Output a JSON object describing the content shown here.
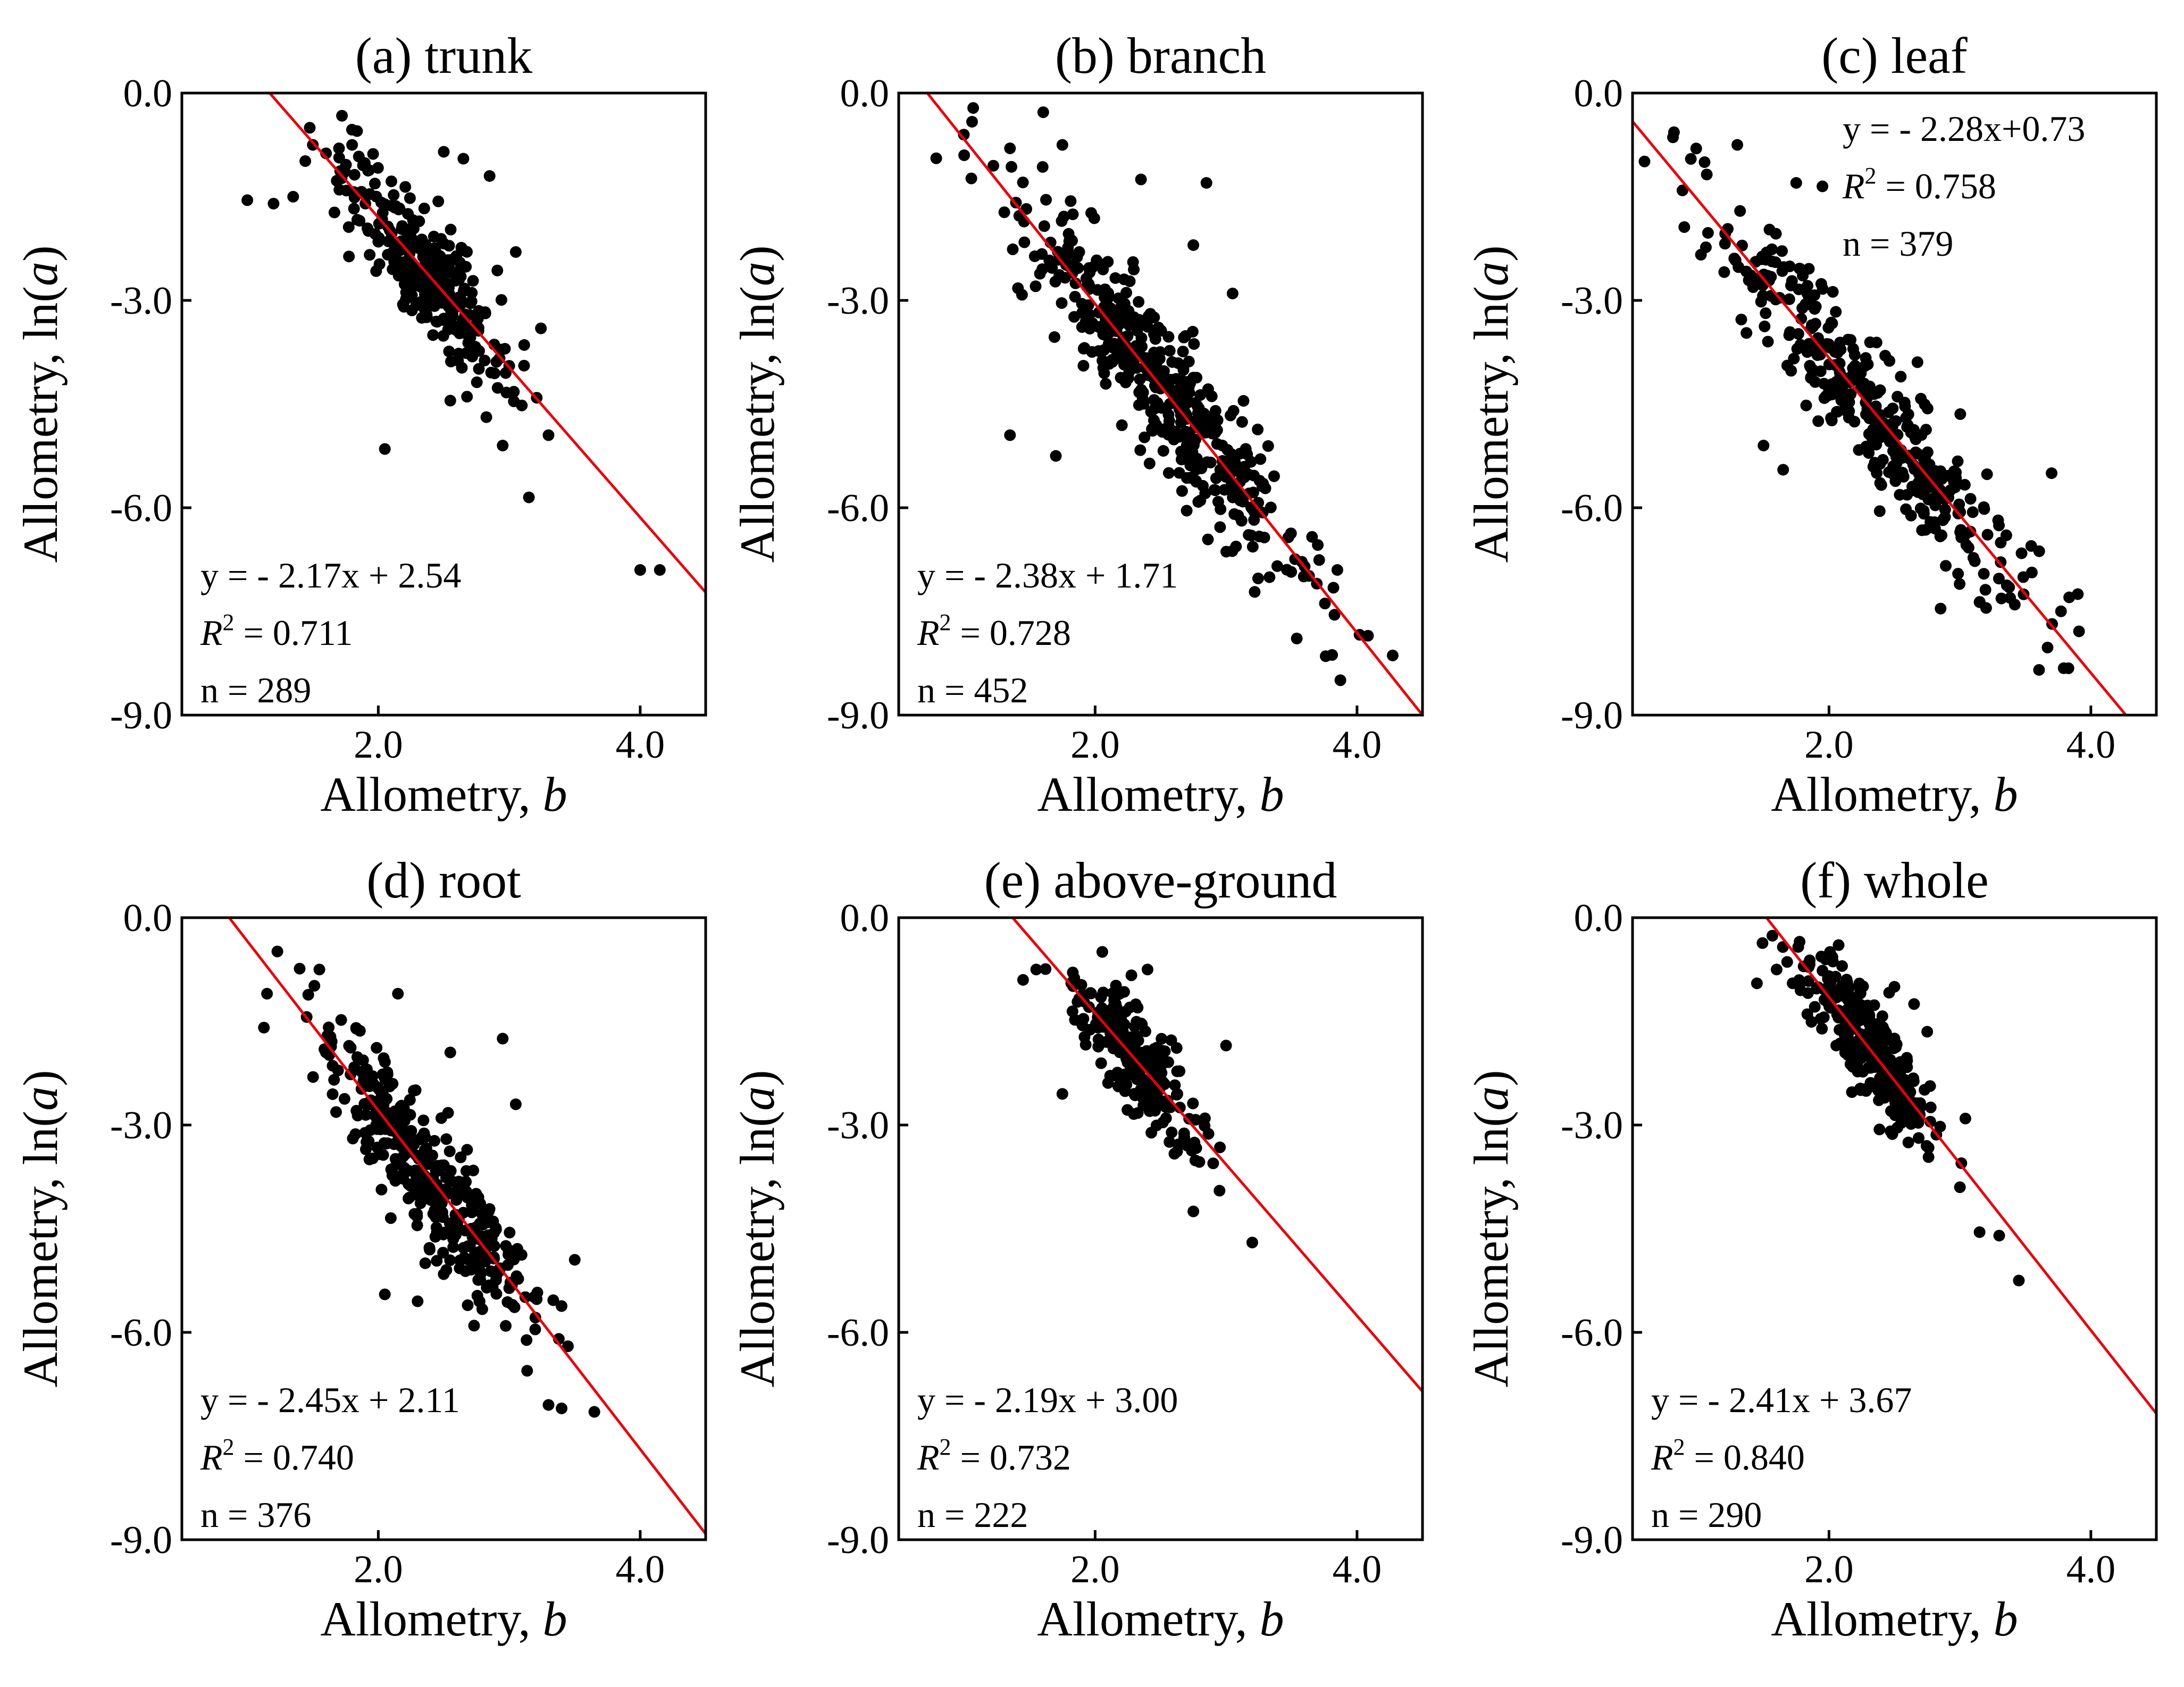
{
  "figure": {
    "x_label_text": "Allometry, ",
    "x_label_var": "b",
    "y_label_text": "Allometry, ln(",
    "y_label_var": "a",
    "y_label_close": ")",
    "line_color": "#e8000b",
    "point_color": "#000000"
  },
  "chart_data": [
    {
      "type": "scatter",
      "title": "(a) trunk",
      "xlim": [
        0.5,
        4.5
      ],
      "ylim": [
        -9.0,
        0.0
      ],
      "xticks": [
        "2.0",
        "4.0"
      ],
      "yticks": [
        "0.0",
        "-3.0",
        "-6.0",
        "-9.0"
      ],
      "xlabel": "Allometry, b",
      "ylabel": "Allometry, ln(a)",
      "fit": {
        "slope": -2.17,
        "intercept": 2.54
      },
      "annotation": {
        "equation": "y = - 2.17x + 2.54",
        "r2_label": "R",
        "r2_sup": "2",
        "r2_value": " = 0.711",
        "n": "n = 289"
      },
      "annotation_placement": "bottom-left",
      "cloud": {
        "n": 289,
        "x_center": 2.35,
        "x_sd": 0.33,
        "resid_sd": 0.45
      },
      "points": [
        [
          1.0,
          -1.55
        ],
        [
          1.2,
          -1.6
        ],
        [
          1.35,
          -1.5
        ],
        [
          1.5,
          -0.75
        ],
        [
          1.7,
          -0.8
        ],
        [
          1.8,
          -0.75
        ],
        [
          2.05,
          -5.15
        ],
        [
          2.5,
          -0.85
        ],
        [
          2.65,
          -0.95
        ],
        [
          2.85,
          -1.2
        ],
        [
          3.05,
          -2.3
        ],
        [
          2.55,
          -4.45
        ],
        [
          2.95,
          -5.1
        ],
        [
          3.15,
          -5.85
        ],
        [
          3.3,
          -4.95
        ],
        [
          4.0,
          -6.9
        ],
        [
          4.15,
          -6.9
        ]
      ]
    },
    {
      "type": "scatter",
      "title": "(b) branch",
      "xlim": [
        0.5,
        4.5
      ],
      "ylim": [
        -9.0,
        0.0
      ],
      "xticks": [
        "2.0",
        "4.0"
      ],
      "yticks": [
        "0.0",
        "-3.0",
        "-6.0",
        "-9.0"
      ],
      "xlabel": "Allometry, b",
      "ylabel": "Allometry, ln(a)",
      "fit": {
        "slope": -2.38,
        "intercept": 1.71
      },
      "annotation": {
        "equation": "y = - 2.38x + 1.71",
        "r2_label": "R",
        "r2_sup": "2",
        "r2_value": " = 0.728",
        "n": "n = 452"
      },
      "annotation_placement": "bottom-left",
      "cloud": {
        "n": 452,
        "x_center": 2.5,
        "x_sd": 0.55,
        "resid_sd": 0.55
      },
      "points": [
        [
          1.0,
          -0.9
        ],
        [
          1.35,
          -0.8
        ],
        [
          1.75,
          -0.75
        ],
        [
          2.35,
          -1.25
        ],
        [
          2.85,
          -1.3
        ],
        [
          2.75,
          -2.2
        ],
        [
          3.05,
          -2.9
        ],
        [
          1.35,
          -4.95
        ],
        [
          1.7,
          -5.25
        ],
        [
          3.6,
          -6.85
        ],
        [
          3.85,
          -6.9
        ]
      ]
    },
    {
      "type": "scatter",
      "title": "(c) leaf",
      "xlim": [
        0.5,
        4.5
      ],
      "ylim": [
        -9.0,
        0.0
      ],
      "xticks": [
        "2.0",
        "4.0"
      ],
      "yticks": [
        "0.0",
        "-3.0",
        "-6.0",
        "-9.0"
      ],
      "xlabel": "Allometry, b",
      "ylabel": "Allometry, ln(a)",
      "fit": {
        "slope": -2.28,
        "intercept": 0.73
      },
      "annotation": {
        "equation": "y = - 2.28x+0.73",
        "r2_label": "R",
        "r2_sup": "2",
        "r2_value": " = 0.758",
        "n": "n = 379"
      },
      "annotation_placement": "top-right",
      "cloud": {
        "n": 379,
        "x_center": 2.3,
        "x_sd": 0.6,
        "resid_sd": 0.5
      },
      "points": [
        [
          1.05,
          -1.0
        ],
        [
          1.3,
          -0.75
        ],
        [
          1.75,
          -1.3
        ],
        [
          1.95,
          -1.35
        ],
        [
          1.5,
          -5.1
        ],
        [
          1.65,
          -5.45
        ],
        [
          3.7,
          -5.5
        ],
        [
          3.9,
          -7.25
        ],
        [
          3.2,
          -7.45
        ]
      ]
    },
    {
      "type": "scatter",
      "title": "(d) root",
      "xlim": [
        0.5,
        4.5
      ],
      "ylim": [
        -9.0,
        0.0
      ],
      "xticks": [
        "2.0",
        "4.0"
      ],
      "yticks": [
        "0.0",
        "-3.0",
        "-6.0",
        "-9.0"
      ],
      "xlabel": "Allometry, b",
      "ylabel": "Allometry, ln(a)",
      "fit": {
        "slope": -2.45,
        "intercept": 2.11
      },
      "annotation": {
        "equation": "y = - 2.45x + 2.11",
        "r2_label": "R",
        "r2_sup": "2",
        "r2_value": " = 0.740",
        "n": "n = 376"
      },
      "annotation_placement": "bottom-left",
      "cloud": {
        "n": 376,
        "x_center": 2.4,
        "x_sd": 0.4,
        "resid_sd": 0.5
      },
      "points": [
        [
          1.15,
          -1.1
        ],
        [
          1.55,
          -0.75
        ],
        [
          2.15,
          -1.1
        ],
        [
          2.55,
          -1.95
        ],
        [
          2.95,
          -1.75
        ],
        [
          3.05,
          -2.7
        ],
        [
          3.5,
          -4.95
        ],
        [
          3.3,
          -7.05
        ],
        [
          3.4,
          -7.1
        ],
        [
          3.65,
          -7.15
        ],
        [
          2.05,
          -5.45
        ],
        [
          2.3,
          -5.55
        ]
      ]
    },
    {
      "type": "scatter",
      "title": "(e) above-ground",
      "xlim": [
        0.5,
        4.5
      ],
      "ylim": [
        -9.0,
        0.0
      ],
      "xticks": [
        "2.0",
        "4.0"
      ],
      "yticks": [
        "0.0",
        "-3.0",
        "-6.0",
        "-9.0"
      ],
      "xlabel": "Allometry, b",
      "ylabel": "Allometry, ln(a)",
      "fit": {
        "slope": -2.19,
        "intercept": 3.0
      },
      "annotation": {
        "equation": "y = - 2.19x + 3.00",
        "r2_label": "R",
        "r2_sup": "2",
        "r2_value": " = 0.732",
        "n": "n = 222"
      },
      "annotation_placement": "bottom-left",
      "cloud": {
        "n": 222,
        "x_center": 2.3,
        "x_sd": 0.25,
        "resid_sd": 0.4
      },
      "points": [
        [
          1.45,
          -0.9
        ],
        [
          1.55,
          -0.75
        ],
        [
          2.4,
          -0.75
        ],
        [
          3.0,
          -1.85
        ],
        [
          1.75,
          -2.55
        ],
        [
          2.75,
          -4.25
        ],
        [
          3.2,
          -4.7
        ],
        [
          2.95,
          -3.95
        ]
      ]
    },
    {
      "type": "scatter",
      "title": "(f)  whole",
      "xlim": [
        0.5,
        4.5
      ],
      "ylim": [
        -9.0,
        0.0
      ],
      "xticks": [
        "2.0",
        "4.0"
      ],
      "yticks": [
        "0.0",
        "-3.0",
        "-6.0",
        "-9.0"
      ],
      "xlabel": "Allometry, b",
      "ylabel": "Allometry, ln(a)",
      "fit": {
        "slope": -2.41,
        "intercept": 3.67
      },
      "annotation": {
        "equation": "y = - 2.41x + 3.67",
        "r2_label": "R",
        "r2_sup": "2",
        "r2_value": " = 0.840",
        "n": "n = 290"
      },
      "annotation_placement": "bottom-left",
      "cloud": {
        "n": 290,
        "x_center": 2.3,
        "x_sd": 0.25,
        "resid_sd": 0.35
      },
      "points": [
        [
          1.45,
          -0.95
        ],
        [
          1.6,
          -0.75
        ],
        [
          2.1,
          -0.7
        ],
        [
          2.5,
          -1.0
        ],
        [
          2.65,
          -1.25
        ],
        [
          2.75,
          -1.65
        ],
        [
          3.0,
          -3.9
        ],
        [
          3.15,
          -4.55
        ],
        [
          3.3,
          -4.6
        ],
        [
          3.45,
          -5.25
        ]
      ]
    }
  ]
}
